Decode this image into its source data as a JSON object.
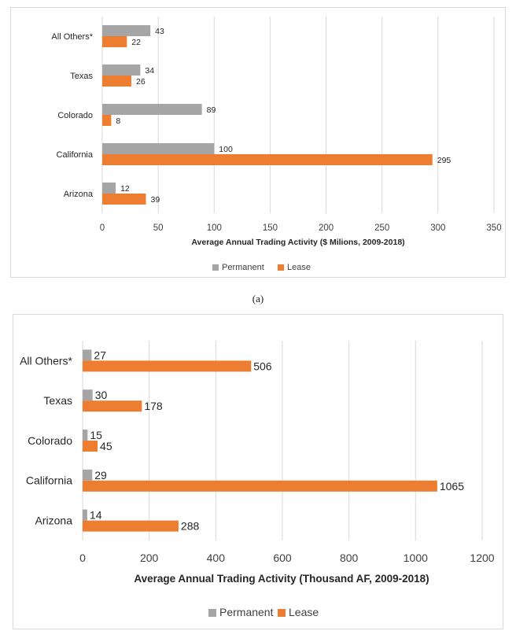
{
  "chart_data": [
    {
      "type": "bar",
      "orientation": "horizontal",
      "categories": [
        "All Others*",
        "Texas",
        "Colorado",
        "California",
        "Arizona"
      ],
      "series": [
        {
          "name": "Permanent",
          "values": [
            43,
            34,
            89,
            100,
            12
          ],
          "color": "#a5a5a5"
        },
        {
          "name": "Lease",
          "values": [
            22,
            26,
            8,
            295,
            39
          ],
          "color": "#ed7d31"
        }
      ],
      "xlabel": "Average Annual Trading Activity ($ Milions, 2009-2018)",
      "xlim": [
        0,
        350
      ],
      "xticks": [
        "0",
        "50",
        "100",
        "150",
        "200",
        "250",
        "300",
        "350"
      ],
      "grid": true,
      "legend": "bottom"
    },
    {
      "type": "bar",
      "orientation": "horizontal",
      "categories": [
        "All Others*",
        "Texas",
        "Colorado",
        "California",
        "Arizona"
      ],
      "series": [
        {
          "name": "Permanent",
          "values": [
            27,
            30,
            15,
            29,
            14
          ],
          "color": "#a5a5a5"
        },
        {
          "name": "Lease",
          "values": [
            506,
            178,
            45,
            1065,
            288
          ],
          "color": "#ed7d31"
        }
      ],
      "xlabel": "Average Annual Trading Activity (Thousand AF, 2009-2018)",
      "xlim": [
        0,
        1200
      ],
      "xticks": [
        "0",
        "200",
        "400",
        "600",
        "800",
        "1000",
        "1200"
      ],
      "grid": true,
      "legend": "bottom"
    }
  ],
  "caption_a": "(a)"
}
